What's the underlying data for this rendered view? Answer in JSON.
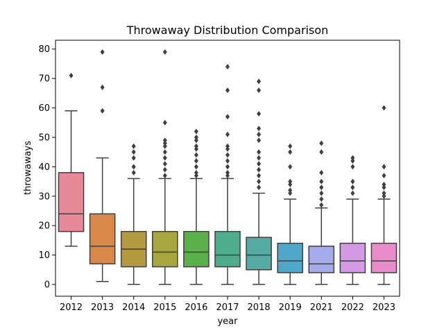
{
  "chart_data": {
    "type": "box",
    "title": "Throwaway Distribution Comparison",
    "xlabel": "year",
    "ylabel": "throwaways",
    "ylim": [
      -4,
      83
    ],
    "yticks": [
      0,
      10,
      20,
      30,
      40,
      50,
      60,
      70,
      80
    ],
    "grid": false,
    "categories": [
      "2012",
      "2013",
      "2014",
      "2015",
      "2016",
      "2017",
      "2018",
      "2019",
      "2021",
      "2022",
      "2023"
    ],
    "colors": [
      "#e8899a",
      "#d6894b",
      "#b59a3f",
      "#a8a63e",
      "#5cb04b",
      "#4ead8c",
      "#55aaa3",
      "#4fa8c9",
      "#a5aaea",
      "#d49ae6",
      "#e88bc9"
    ],
    "boxes": [
      {
        "year": "2012",
        "whislo": 13,
        "q1": 18,
        "med": 24,
        "q3": 38,
        "whishi": 59,
        "fliers": [
          71
        ]
      },
      {
        "year": "2013",
        "whislo": 1,
        "q1": 7,
        "med": 13,
        "q3": 24,
        "whishi": 43,
        "fliers": [
          59,
          67,
          79
        ]
      },
      {
        "year": "2014",
        "whislo": 0,
        "q1": 6,
        "med": 12,
        "q3": 18,
        "whishi": 36,
        "fliers": [
          38,
          40,
          43,
          45,
          47
        ]
      },
      {
        "year": "2015",
        "whislo": 0,
        "q1": 6,
        "med": 11,
        "q3": 18,
        "whishi": 36,
        "fliers": [
          37,
          39,
          41,
          43,
          45,
          47,
          48,
          49,
          55,
          79
        ]
      },
      {
        "year": "2016",
        "whislo": 0,
        "q1": 6,
        "med": 11,
        "q3": 18,
        "whishi": 36,
        "fliers": [
          37,
          38,
          40,
          42,
          44,
          46,
          47,
          49,
          50,
          52
        ]
      },
      {
        "year": "2017",
        "whislo": 0,
        "q1": 6,
        "med": 10,
        "q3": 18,
        "whishi": 36,
        "fliers": [
          37,
          38,
          40,
          42,
          44,
          46,
          47,
          51,
          57,
          66,
          74
        ]
      },
      {
        "year": "2018",
        "whislo": 0,
        "q1": 5,
        "med": 10,
        "q3": 16,
        "whishi": 31,
        "fliers": [
          33,
          35,
          37,
          39,
          41,
          43,
          45,
          49,
          51,
          53,
          58,
          66,
          69
        ]
      },
      {
        "year": "2019",
        "whislo": 0,
        "q1": 4,
        "med": 8,
        "q3": 14,
        "whishi": 29,
        "fliers": [
          31,
          32,
          34,
          35,
          40,
          45,
          47
        ]
      },
      {
        "year": "2021",
        "whislo": 0,
        "q1": 4,
        "med": 7,
        "q3": 13,
        "whishi": 26,
        "fliers": [
          27,
          29,
          31,
          33,
          35,
          38,
          45,
          48
        ]
      },
      {
        "year": "2022",
        "whislo": 0,
        "q1": 4,
        "med": 8,
        "q3": 14,
        "whishi": 29,
        "fliers": [
          31,
          33,
          35,
          40,
          42,
          43
        ]
      },
      {
        "year": "2023",
        "whislo": 0,
        "q1": 4,
        "med": 8,
        "q3": 14,
        "whishi": 29,
        "fliers": [
          30,
          31,
          33,
          34,
          37,
          40,
          60
        ]
      }
    ]
  }
}
